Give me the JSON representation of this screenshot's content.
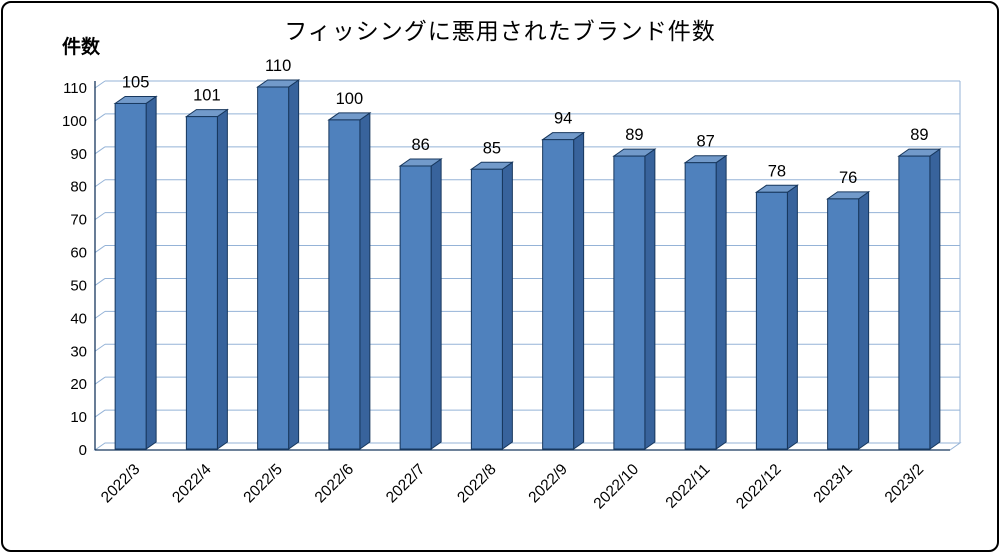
{
  "chart_data": {
    "type": "bar",
    "title": "フィッシングに悪用されたブランド件数",
    "ylabel": "件数",
    "xlabel": "",
    "categories": [
      "2022/3",
      "2022/4",
      "2022/5",
      "2022/6",
      "2022/7",
      "2022/8",
      "2022/9",
      "2022/10",
      "2022/11",
      "2022/12",
      "2023/1",
      "2023/2"
    ],
    "values": [
      105,
      101,
      110,
      100,
      86,
      85,
      94,
      89,
      87,
      78,
      76,
      89
    ],
    "ylim": [
      0,
      110
    ],
    "ytick_step": 10,
    "grid": true,
    "legend": false,
    "style_3d": true,
    "colors": {
      "bar_front": "#4f81bd",
      "bar_top": "#729aca",
      "bar_side": "#38639c",
      "bar_edge": "#17375d",
      "gridline": "#95b3d7",
      "axis": "#17375d",
      "label_text": "#000000",
      "background": "#ffffff"
    }
  }
}
